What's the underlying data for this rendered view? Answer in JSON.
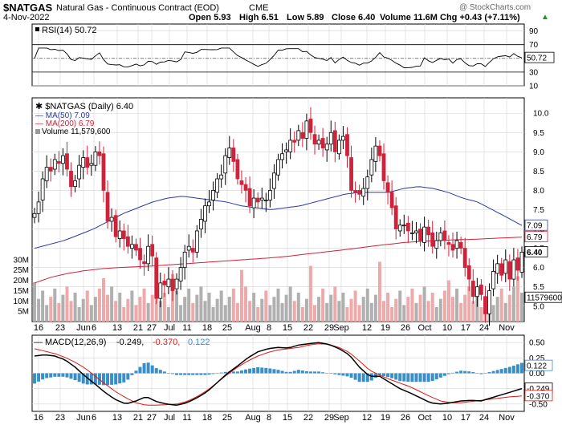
{
  "header": {
    "ticker": "$NATGAS",
    "name": "Natural Gas - Continuous Contract (EOD)",
    "exchange": "CME",
    "date": "4-Nov-2022",
    "open": "Open 5.93",
    "high": "High 6.51",
    "low": "Low 5.89",
    "close": "Close 6.40",
    "volume": "Volume 11.6M",
    "change": "Chg +0.43 (+7.11%)",
    "change_arrow": "▲",
    "watermark": "@ StockCharts.com"
  },
  "colors": {
    "up": "#000000",
    "down": "#d0223a",
    "ma50": "#2b3a9b",
    "ma200": "#d0223a",
    "rsi": "#000000",
    "macd": "#000000",
    "signal": "#e01818",
    "hist": "#3b8fc7",
    "grid": "#d4d4d4",
    "vol_up": "#b0b0b0",
    "vol_down": "#eeaaaa"
  },
  "chart_data": [
    {
      "type": "line",
      "panel": "rsi",
      "legend": "RSI(14) 50.72",
      "series": [
        {
          "name": "RSI(14)",
          "last": 50.72
        }
      ],
      "ylim": [
        10,
        100
      ],
      "y_ticks": [
        90,
        70,
        50,
        30,
        10
      ],
      "bands": [
        70,
        30
      ],
      "current_label": "50.72"
    },
    {
      "type": "candlestick",
      "panel": "price",
      "legend": {
        "main": "$NATGAS (Daily) 6.40",
        "ma50": "MA(50) 7.09",
        "ma200": "MA(200) 6.79",
        "volume": "Volume 11,579,600"
      },
      "ylim": [
        4.6,
        10.4
      ],
      "y_ticks": [
        "10.0",
        "9.5",
        "9.0",
        "8.5",
        "8.0",
        "7.5",
        "7.0",
        "6.5",
        "6.0",
        "5.5",
        "5.0"
      ],
      "right_labels": {
        "ma50": "7.09",
        "ma200": "6.79",
        "close": "6.40",
        "volume": "11579600"
      },
      "vol_ticks": [
        "30M",
        "25M",
        "20M",
        "15M",
        "10M",
        "5M"
      ],
      "vol_max": 35,
      "closes": [
        7.4,
        7.7,
        8.3,
        8.6,
        8.5,
        8.8,
        8.7,
        8.9,
        8.55,
        8.1,
        8.25,
        8.65,
        8.85,
        8.6,
        8.7,
        9.0,
        8.9,
        8.0,
        7.2,
        7.3,
        6.8,
        6.95,
        6.75,
        6.55,
        6.6,
        6.45,
        6.2,
        6.1,
        6.55,
        6.3,
        5.2,
        5.6,
        5.55,
        5.7,
        5.4,
        5.7,
        6.0,
        6.4,
        6.55,
        6.4,
        6.95,
        7.25,
        7.6,
        7.7,
        8.0,
        8.3,
        8.4,
        8.9,
        9.1,
        8.75,
        8.3,
        8.15,
        8.0,
        7.6,
        7.8,
        7.7,
        7.8,
        7.75,
        8.0,
        8.45,
        8.8,
        8.95,
        9.05,
        9.3,
        9.25,
        9.55,
        9.35,
        9.8,
        9.5,
        9.2,
        9.3,
        9.1,
        9.2,
        9.5,
        9.0,
        9.3,
        9.4,
        8.9,
        8.0,
        7.95,
        7.9,
        8.05,
        8.35,
        8.8,
        9.15,
        8.9,
        8.25,
        7.95,
        7.55,
        7.0,
        7.1,
        7.1,
        6.95,
        6.9,
        6.95,
        6.7,
        7.05,
        6.85,
        6.55,
        6.7,
        6.9,
        6.7,
        6.6,
        6.45,
        6.7,
        6.5,
        6.0,
        5.7,
        5.25,
        5.5,
        5.3,
        4.8,
        5.4,
        5.9,
        6.1,
        5.8,
        6.2,
        5.7,
        6.2,
        5.93,
        6.4
      ],
      "ma50": [
        6.5,
        6.6,
        6.7,
        6.85,
        7.0,
        7.2,
        7.4,
        7.55,
        7.7,
        7.8,
        7.85,
        7.8,
        7.75,
        7.7,
        7.6,
        7.55,
        7.5,
        7.55,
        7.6,
        7.7,
        7.8,
        7.9,
        7.95,
        7.95,
        7.95,
        8.05,
        8.1,
        8.05,
        7.95,
        7.8,
        7.7,
        7.5,
        7.3,
        7.09
      ],
      "ma200": [
        5.6,
        5.75,
        5.85,
        5.92,
        5.97,
        6.0,
        6.02,
        6.04,
        6.07,
        6.1,
        6.13,
        6.16,
        6.19,
        6.22,
        6.25,
        6.29,
        6.34,
        6.39,
        6.44,
        6.49,
        6.55,
        6.6,
        6.65,
        6.68,
        6.7,
        6.72,
        6.73,
        6.75,
        6.77,
        6.79
      ]
    },
    {
      "type": "line",
      "panel": "macd",
      "legend": {
        "label": "MACD(12,26,9)",
        "macd": "-0.249",
        "signal": "-0.370",
        "hist": "0.122"
      },
      "ylim": [
        -0.62,
        0.62
      ],
      "y_ticks": [
        "0.50",
        "0.25",
        "0.00",
        "-0.25",
        "-0.50"
      ],
      "right_labels": {
        "hist": "0.122",
        "macd": "-0.249",
        "signal": "-0.370"
      },
      "macd": [
        0.28,
        0.3,
        0.28,
        0.22,
        0.1,
        -0.05,
        -0.18,
        -0.32,
        -0.43,
        -0.5,
        -0.45,
        -0.38,
        -0.46,
        -0.5,
        -0.52,
        -0.48,
        -0.4,
        -0.3,
        -0.15,
        0.0,
        0.12,
        0.25,
        0.35,
        0.4,
        0.42,
        0.41,
        0.46,
        0.48,
        0.5,
        0.47,
        0.4,
        0.3,
        0.1,
        -0.05,
        -0.05,
        -0.15,
        -0.25,
        -0.32,
        -0.4,
        -0.48,
        -0.5,
        -0.48,
        -0.45,
        -0.44,
        -0.45,
        -0.4,
        -0.35,
        -0.3,
        -0.249
      ],
      "signal": [
        0.4,
        0.36,
        0.32,
        0.26,
        0.18,
        0.08,
        -0.05,
        -0.18,
        -0.3,
        -0.4,
        -0.48,
        -0.52,
        -0.52,
        -0.51,
        -0.5,
        -0.46,
        -0.38,
        -0.28,
        -0.15,
        -0.02,
        0.1,
        0.2,
        0.28,
        0.34,
        0.38,
        0.4,
        0.42,
        0.46,
        0.48,
        0.47,
        0.42,
        0.34,
        0.2,
        0.05,
        -0.03,
        -0.1,
        -0.16,
        -0.22,
        -0.3,
        -0.38,
        -0.45,
        -0.48,
        -0.48,
        -0.46,
        -0.44,
        -0.42,
        -0.4,
        -0.38,
        -0.37
      ]
    }
  ],
  "x_axis": [
    "16",
    "23",
    "Jun",
    "6",
    "13",
    "21",
    "27",
    "Jul",
    "11",
    "18",
    "25",
    "Aug",
    "8",
    "15",
    "22",
    "29",
    "Sep",
    "12",
    "19",
    "26",
    "Oct",
    "10",
    "17",
    "24",
    "Nov"
  ]
}
